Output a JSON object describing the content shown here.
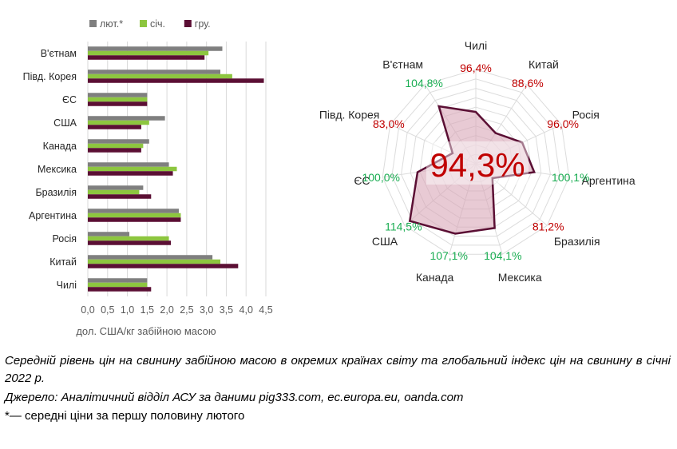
{
  "chart_data": [
    {
      "type": "bar",
      "orientation": "horizontal",
      "categories": [
        "В'єтнам",
        "Півд. Корея",
        "ЄС",
        "США",
        "Канада",
        "Мексика",
        "Бразилія",
        "Аргентина",
        "Росія",
        "Китай",
        "Чилі"
      ],
      "series": [
        {
          "name": "лют.*",
          "color": "#7f7f7f",
          "values": [
            3.4,
            3.35,
            1.5,
            1.95,
            1.55,
            2.05,
            1.4,
            2.3,
            1.05,
            3.15,
            1.5
          ]
        },
        {
          "name": "січ.",
          "color": "#8dc63f",
          "values": [
            3.05,
            3.65,
            1.5,
            1.55,
            1.4,
            2.25,
            1.3,
            2.35,
            2.05,
            3.35,
            1.5
          ]
        },
        {
          "name": "гру.",
          "color": "#5b0f34",
          "values": [
            2.95,
            4.45,
            1.5,
            1.35,
            1.35,
            2.15,
            1.6,
            2.35,
            2.1,
            3.8,
            1.6
          ]
        }
      ],
      "xlim": [
        0,
        4.5
      ],
      "xticks": [
        "0,0",
        "0,5",
        "1,0",
        "1,5",
        "2,0",
        "2,5",
        "3,0",
        "3,5",
        "4,0",
        "4,5"
      ],
      "xlabel": "дол. США/кг забійною масою",
      "legend_position": "top",
      "grid": true
    },
    {
      "type": "radar",
      "categories": [
        "Чилі",
        "Китай",
        "Росія",
        "Аргентина",
        "Бразилія",
        "Мексика",
        "Канада",
        "США",
        "ЄС",
        "Півд. Корея",
        "В'єтнам"
      ],
      "values": [
        96.4,
        88.6,
        96.0,
        100.1,
        81.2,
        104.1,
        107.1,
        114.5,
        100.0,
        83.0,
        104.8
      ],
      "value_labels": [
        "96,4%",
        "88,6%",
        "96,0%",
        "100,1%",
        "81,2%",
        "104,1%",
        "107,1%",
        "114,5%",
        "100,0%",
        "83,0%",
        "104,8%"
      ],
      "range": [
        70,
        118
      ],
      "rings": 10,
      "above_color": "#1aad52",
      "below_color": "#c00000",
      "line_color": "#5b0f34",
      "fill_color": "#d9a6b8",
      "center_label": "94,3%",
      "center_label_color": "#c00000"
    }
  ],
  "caption": {
    "main": "Середній рівень цін на свинину забійною масою в окремих країнах світу та глобальний індекс цін на свинину в січні 2022 р.",
    "source": "Джерело: Аналітичний відділ АСУ за даними pig333.com, ec.europa.eu, oanda.com",
    "note": "*— середні ціни за першу половину лютого"
  }
}
